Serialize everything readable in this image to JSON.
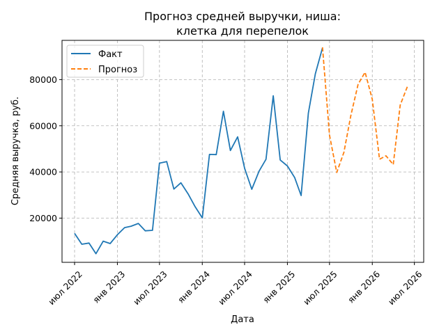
{
  "chart_data": {
    "type": "line",
    "title": "Прогноз средней выручки, ниша:",
    "subtitle": "клетка для перепелок",
    "xlabel": "Дата",
    "ylabel": "Средняя выручка, руб.",
    "xlim": [
      "2022-05-08",
      "2026-08-10"
    ],
    "ylim": [
      850,
      97000
    ],
    "grid": true,
    "legend_position": "top-left",
    "x_ticks": [
      {
        "date": "2022-07-01",
        "label": "июл 2022"
      },
      {
        "date": "2023-01-01",
        "label": "янв 2023"
      },
      {
        "date": "2023-07-01",
        "label": "июл 2023"
      },
      {
        "date": "2024-01-01",
        "label": "янв 2024"
      },
      {
        "date": "2024-07-01",
        "label": "июл 2024"
      },
      {
        "date": "2025-01-01",
        "label": "янв 2025"
      },
      {
        "date": "2025-07-01",
        "label": "июл 2025"
      },
      {
        "date": "2026-01-01",
        "label": "янв 2026"
      },
      {
        "date": "2026-07-01",
        "label": "июл 2026"
      }
    ],
    "y_ticks": [
      {
        "value": 20000,
        "label": "20000"
      },
      {
        "value": 40000,
        "label": "40000"
      },
      {
        "value": 60000,
        "label": "60000"
      },
      {
        "value": 80000,
        "label": "80000"
      }
    ],
    "series": [
      {
        "name": "Факт",
        "color": "#1f77b4",
        "style": "solid",
        "points": [
          {
            "x": "2022-07-01",
            "y": 13400
          },
          {
            "x": "2022-08-01",
            "y": 8700
          },
          {
            "x": "2022-09-01",
            "y": 9200
          },
          {
            "x": "2022-10-01",
            "y": 4600
          },
          {
            "x": "2022-11-01",
            "y": 10000
          },
          {
            "x": "2022-12-01",
            "y": 9000
          },
          {
            "x": "2023-01-01",
            "y": 12800
          },
          {
            "x": "2023-02-01",
            "y": 15900
          },
          {
            "x": "2023-03-01",
            "y": 16500
          },
          {
            "x": "2023-04-01",
            "y": 17700
          },
          {
            "x": "2023-05-01",
            "y": 14500
          },
          {
            "x": "2023-06-01",
            "y": 14700
          },
          {
            "x": "2023-07-01",
            "y": 43800
          },
          {
            "x": "2023-08-01",
            "y": 44500
          },
          {
            "x": "2023-09-01",
            "y": 32600
          },
          {
            "x": "2023-10-01",
            "y": 35300
          },
          {
            "x": "2023-11-01",
            "y": 30500
          },
          {
            "x": "2023-12-01",
            "y": 25000
          },
          {
            "x": "2024-01-01",
            "y": 20100
          },
          {
            "x": "2024-02-01",
            "y": 47600
          },
          {
            "x": "2024-03-01",
            "y": 47500
          },
          {
            "x": "2024-04-01",
            "y": 66300
          },
          {
            "x": "2024-05-01",
            "y": 49300
          },
          {
            "x": "2024-06-01",
            "y": 55200
          },
          {
            "x": "2024-07-01",
            "y": 41600
          },
          {
            "x": "2024-08-01",
            "y": 32500
          },
          {
            "x": "2024-09-01",
            "y": 40300
          },
          {
            "x": "2024-10-01",
            "y": 45500
          },
          {
            "x": "2024-11-01",
            "y": 73000
          },
          {
            "x": "2024-12-01",
            "y": 45200
          },
          {
            "x": "2025-01-01",
            "y": 42600
          },
          {
            "x": "2025-02-01",
            "y": 37600
          },
          {
            "x": "2025-03-01",
            "y": 29800
          },
          {
            "x": "2025-04-01",
            "y": 65500
          },
          {
            "x": "2025-05-01",
            "y": 82500
          },
          {
            "x": "2025-06-01",
            "y": 93800
          }
        ]
      },
      {
        "name": "Прогноз",
        "color": "#ff7f0e",
        "style": "dashed",
        "points": [
          {
            "x": "2025-06-01",
            "y": 94000
          },
          {
            "x": "2025-07-01",
            "y": 56000
          },
          {
            "x": "2025-08-01",
            "y": 39800
          },
          {
            "x": "2025-09-01",
            "y": 48500
          },
          {
            "x": "2025-10-01",
            "y": 64500
          },
          {
            "x": "2025-11-01",
            "y": 78000
          },
          {
            "x": "2025-12-01",
            "y": 83200
          },
          {
            "x": "2026-01-01",
            "y": 71500
          },
          {
            "x": "2026-02-01",
            "y": 45500
          },
          {
            "x": "2026-03-01",
            "y": 47000
          },
          {
            "x": "2026-04-01",
            "y": 43200
          },
          {
            "x": "2026-05-01",
            "y": 69000
          },
          {
            "x": "2026-06-01",
            "y": 77000
          }
        ]
      }
    ]
  }
}
